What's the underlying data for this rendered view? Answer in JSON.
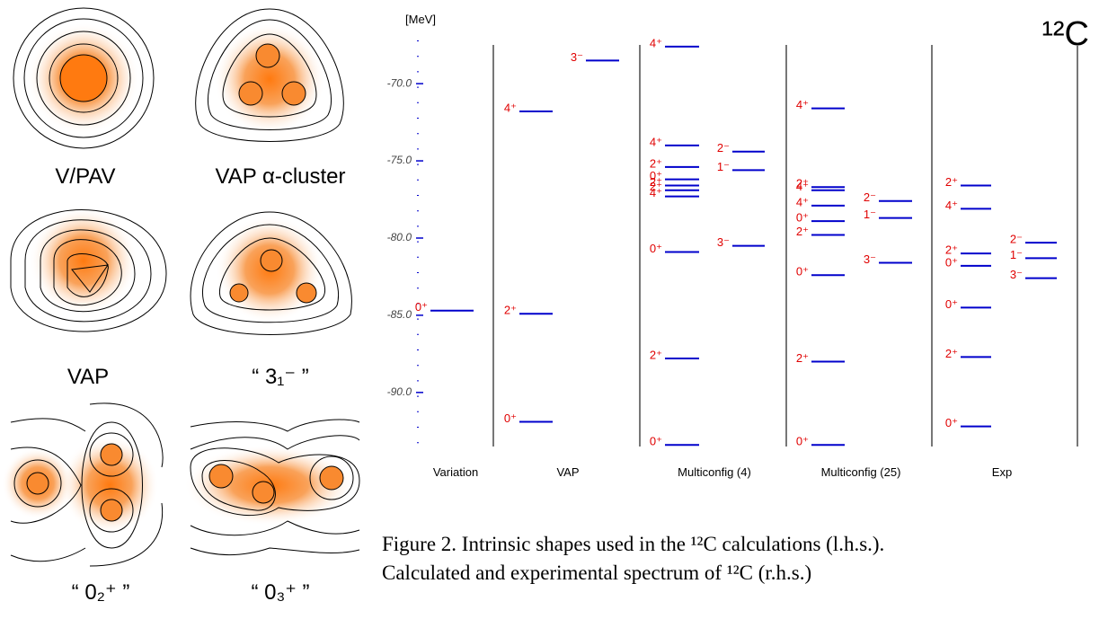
{
  "figure": {
    "panels": [
      "V/PAV",
      "VAP α-cluster",
      "VAP",
      "“ 3₁⁻ ”",
      "“ 0₂⁺ ”",
      "“ 0₃⁺ ”"
    ],
    "caption": [
      "Figure 2. Intrinsic shapes used in the ¹²C calculations (l.h.s.).",
      "Calculated and experimental spectrum of ¹²C (r.h.s.)"
    ]
  },
  "chart_data": {
    "type": "levels",
    "title": "¹²C",
    "ylabel": "[MeV]",
    "ylim": [
      -93.5,
      -67.2
    ],
    "yticks": [
      {
        "value": -70,
        "label": "-70.0"
      },
      {
        "value": -75,
        "label": "-75.0"
      },
      {
        "value": -80,
        "label": "-80.0"
      },
      {
        "value": -85,
        "label": "-85.0"
      },
      {
        "value": -90,
        "label": "-90.0"
      }
    ],
    "line_color": "#0000cc",
    "label_color": "#e00000",
    "columns": [
      {
        "name": "Variation",
        "positive": {
          "labels": [
            "0⁺"
          ],
          "values": [
            -84.7
          ]
        }
      },
      {
        "name": "VAP",
        "positive": {
          "labels": [
            "4⁺",
            "2⁺",
            "0⁺"
          ],
          "values": [
            -71.8,
            -84.9,
            -91.9
          ]
        },
        "negative": {
          "labels": [
            "3⁻"
          ],
          "values": [
            -68.5
          ]
        }
      },
      {
        "name": "Multiconfig (4)",
        "positive": {
          "labels": [
            "4⁺",
            "4⁺",
            "2⁺",
            "0⁺",
            "2⁺",
            "2⁺",
            "4⁺",
            "0⁺",
            "2⁺",
            "0⁺"
          ],
          "values": [
            -67.6,
            -74.0,
            -75.4,
            -76.2,
            -76.6,
            -76.9,
            -77.3,
            -80.9,
            -87.8,
            -93.4
          ]
        },
        "negative": {
          "labels": [
            "2⁻",
            "1⁻",
            "3⁻"
          ],
          "values": [
            -74.4,
            -75.6,
            -80.5
          ]
        }
      },
      {
        "name": "Multiconfig (25)",
        "positive": {
          "labels": [
            "4⁺",
            "2⁺",
            "4⁺",
            "4⁺",
            "0⁺",
            "2⁺",
            "0⁺",
            "2⁺",
            "0⁺"
          ],
          "values": [
            -71.6,
            -76.7,
            -76.9,
            -77.9,
            -78.9,
            -79.8,
            -82.4,
            -88.0,
            -93.4
          ]
        },
        "negative": {
          "labels": [
            "2⁻",
            "1⁻",
            "3⁻"
          ],
          "values": [
            -77.6,
            -78.7,
            -81.6
          ]
        }
      },
      {
        "name": "Exp",
        "positive": {
          "labels": [
            "2⁺",
            "4⁺",
            "2⁺",
            "0⁺",
            "0⁺",
            "2⁺",
            "0⁺"
          ],
          "values": [
            -76.6,
            -78.1,
            -81.0,
            -81.8,
            -84.5,
            -87.7,
            -92.2
          ]
        },
        "negative": {
          "labels": [
            "2⁻",
            "1⁻",
            "3⁻"
          ],
          "values": [
            -80.3,
            -81.3,
            -82.6
          ]
        }
      }
    ]
  }
}
